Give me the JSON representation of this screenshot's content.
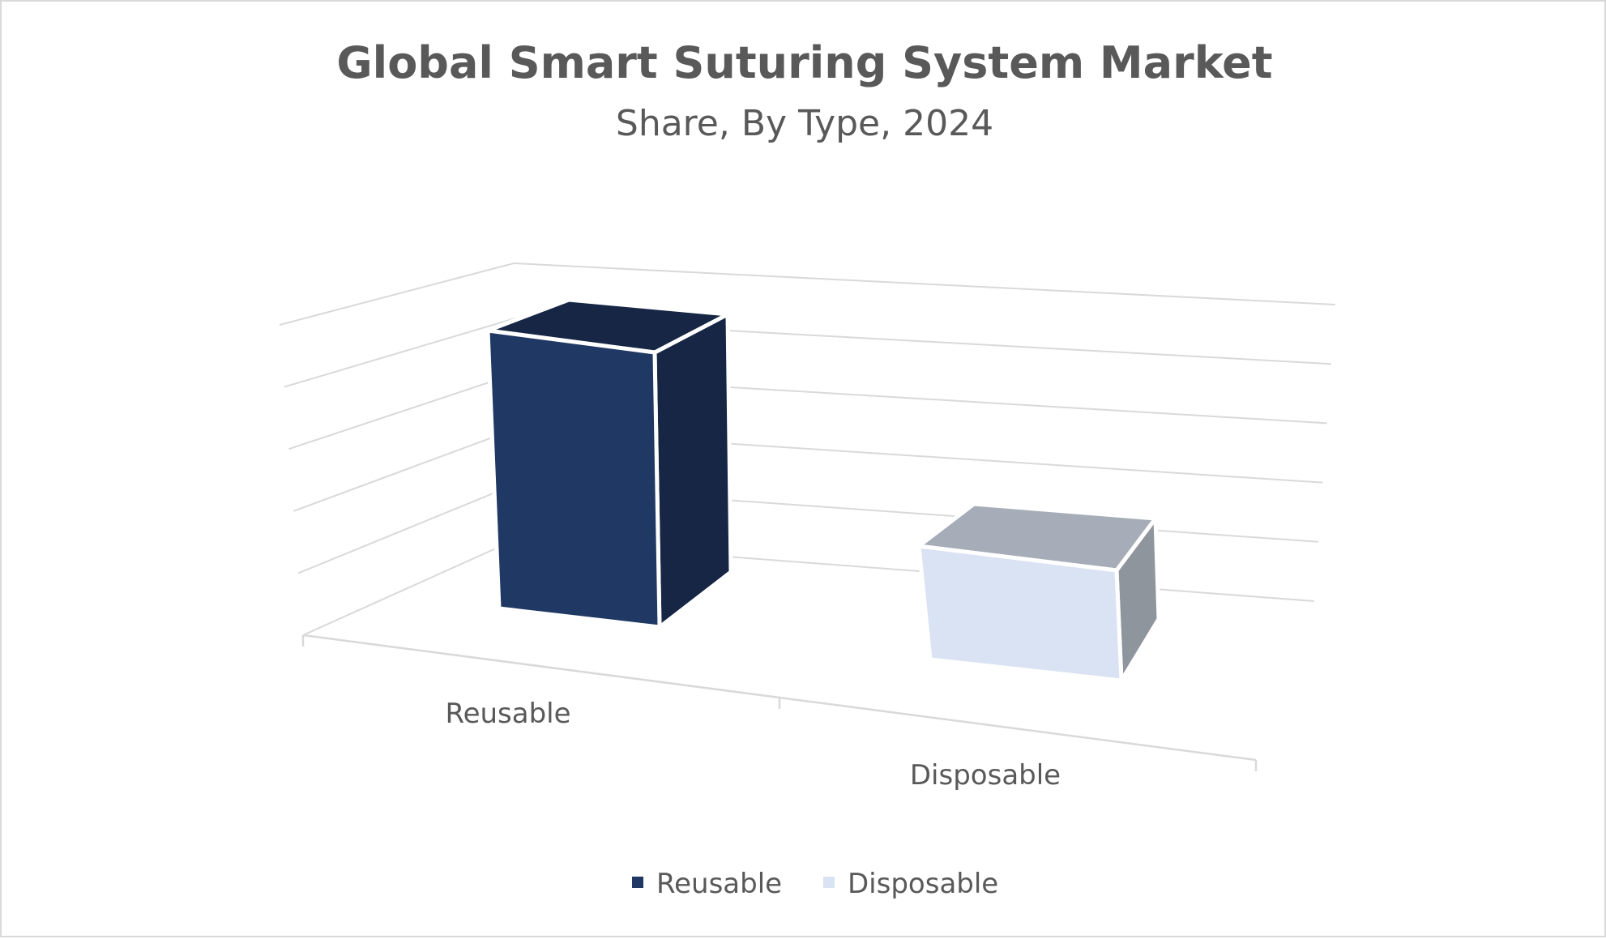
{
  "chart_data": {
    "type": "bar",
    "title": "Global Smart Suturing System Market",
    "subtitle": "Share, By Type, 2024",
    "categories": [
      "Reusable",
      "Disposable"
    ],
    "series": [
      {
        "name": "Reusable",
        "values": [
          70,
          0
        ]
      },
      {
        "name": "Disposable",
        "values": [
          0,
          30
        ]
      }
    ],
    "values": [
      70,
      30
    ],
    "ylim": [
      0,
      80
    ],
    "grid": true,
    "gridline_count": 5,
    "legend_position": "bottom",
    "view": "3d",
    "colors": {
      "Reusable": {
        "front": "#203864",
        "side": "#162644",
        "top": "#162644"
      },
      "Disposable": {
        "front": "#dae3f3",
        "side": "#8f959d",
        "top": "#a6adb8"
      }
    }
  },
  "legend": {
    "items": [
      {
        "label": "Reusable",
        "color": "#203864"
      },
      {
        "label": "Disposable",
        "color": "#dae3f3"
      }
    ]
  }
}
